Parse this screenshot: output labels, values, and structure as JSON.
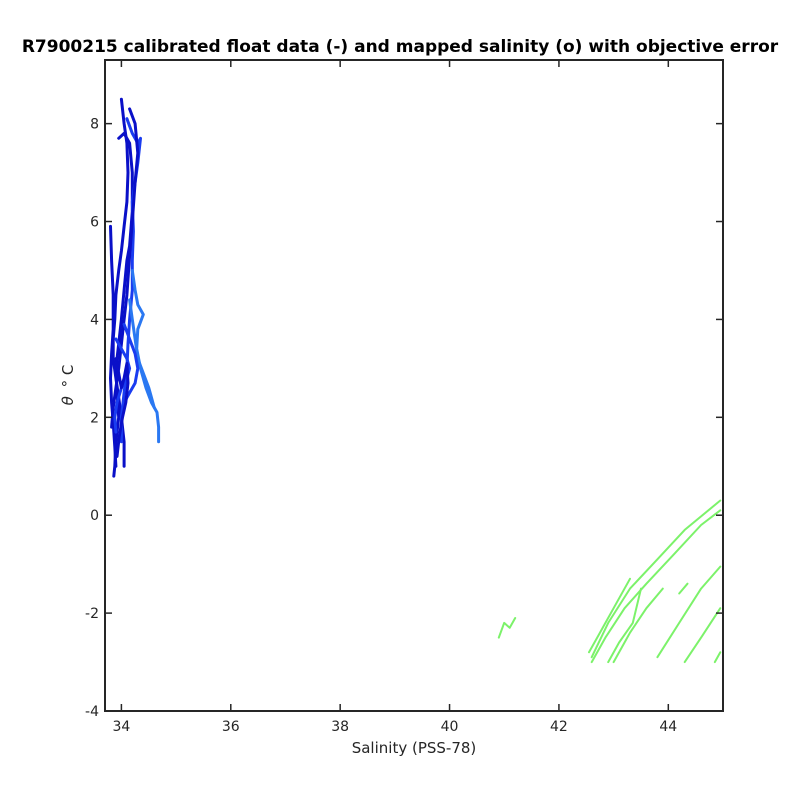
{
  "chart_data": {
    "type": "line",
    "title": "R7900215 calibrated float data (-) and mapped salinity (o) with objective error",
    "xlabel": "Salinity (PSS-78)",
    "ylabel_symbol": "θ",
    "ylabel_unit": "° C",
    "xlim": [
      33.7,
      45.0
    ],
    "ylim": [
      -4,
      9.3
    ],
    "xticks": [
      34,
      36,
      38,
      40,
      42,
      44
    ],
    "yticks": [
      -4,
      -2,
      0,
      2,
      4,
      6,
      8
    ],
    "grid": false,
    "legend": "none",
    "colors": {
      "float_dark": "#0a10c8",
      "float_mid": "#1a3cf0",
      "float_light": "#2a78f2",
      "mapped": "#7cf26a"
    },
    "series": [
      {
        "group": "float_dark",
        "points": [
          [
            34.0,
            8.5
          ],
          [
            34.05,
            8.0
          ],
          [
            34.1,
            7.6
          ],
          [
            34.12,
            7.0
          ],
          [
            34.1,
            6.4
          ],
          [
            34.05,
            5.9
          ],
          [
            34.0,
            5.4
          ],
          [
            33.95,
            5.0
          ],
          [
            33.9,
            4.5
          ],
          [
            33.88,
            4.0
          ],
          [
            33.85,
            3.6
          ],
          [
            33.85,
            3.2
          ],
          [
            33.9,
            2.8
          ],
          [
            33.95,
            2.4
          ],
          [
            34.0,
            2.0
          ],
          [
            34.05,
            1.5
          ],
          [
            34.05,
            1.0
          ]
        ]
      },
      {
        "group": "float_dark",
        "points": [
          [
            33.95,
            7.7
          ],
          [
            34.05,
            7.8
          ],
          [
            34.15,
            7.6
          ],
          [
            34.2,
            7.0
          ],
          [
            34.2,
            6.2
          ],
          [
            34.15,
            5.5
          ],
          [
            34.1,
            5.2
          ],
          [
            34.05,
            4.6
          ],
          [
            34.0,
            4.0
          ],
          [
            33.95,
            3.5
          ],
          [
            33.9,
            3.0
          ],
          [
            33.92,
            2.5
          ],
          [
            33.95,
            2.0
          ],
          [
            33.9,
            1.5
          ],
          [
            33.88,
            1.0
          ],
          [
            33.86,
            0.8
          ]
        ]
      },
      {
        "group": "float_mid",
        "points": [
          [
            34.1,
            8.1
          ],
          [
            34.2,
            7.8
          ],
          [
            34.3,
            7.6
          ],
          [
            34.35,
            7.7
          ],
          [
            34.3,
            7.2
          ],
          [
            34.25,
            6.8
          ],
          [
            34.2,
            6.4
          ],
          [
            34.22,
            5.8
          ],
          [
            34.2,
            5.2
          ],
          [
            34.2,
            4.6
          ],
          [
            34.15,
            4.0
          ],
          [
            34.12,
            3.5
          ],
          [
            34.1,
            3.0
          ],
          [
            34.05,
            2.5
          ],
          [
            34.0,
            2.0
          ],
          [
            34.0,
            1.5
          ]
        ]
      },
      {
        "group": "float_dark",
        "points": [
          [
            34.15,
            8.3
          ],
          [
            34.25,
            8.0
          ],
          [
            34.3,
            7.4
          ],
          [
            34.25,
            6.8
          ],
          [
            34.2,
            6.0
          ],
          [
            34.15,
            5.3
          ],
          [
            34.1,
            4.5
          ],
          [
            34.05,
            4.0
          ],
          [
            34.0,
            3.5
          ],
          [
            33.95,
            3.0
          ],
          [
            33.9,
            2.6
          ],
          [
            33.85,
            2.2
          ],
          [
            33.82,
            1.8
          ]
        ]
      },
      {
        "group": "float_dark",
        "points": [
          [
            33.8,
            5.9
          ],
          [
            33.82,
            5.2
          ],
          [
            33.85,
            4.5
          ],
          [
            33.85,
            3.8
          ],
          [
            33.82,
            3.3
          ],
          [
            33.8,
            2.8
          ],
          [
            33.82,
            2.3
          ],
          [
            33.85,
            1.9
          ],
          [
            33.88,
            1.4
          ],
          [
            33.9,
            1.0
          ]
        ]
      },
      {
        "group": "float_light",
        "points": [
          [
            34.2,
            5.0
          ],
          [
            34.25,
            4.6
          ],
          [
            34.3,
            4.3
          ],
          [
            34.4,
            4.1
          ],
          [
            34.3,
            3.8
          ],
          [
            34.28,
            3.4
          ],
          [
            34.35,
            3.0
          ],
          [
            34.45,
            2.6
          ],
          [
            34.55,
            2.3
          ],
          [
            34.65,
            2.1
          ],
          [
            34.68,
            1.8
          ],
          [
            34.68,
            1.5
          ]
        ]
      },
      {
        "group": "float_light",
        "points": [
          [
            34.15,
            4.4
          ],
          [
            34.2,
            4.0
          ],
          [
            34.25,
            3.6
          ],
          [
            34.3,
            3.2
          ],
          [
            34.4,
            2.9
          ],
          [
            34.5,
            2.6
          ],
          [
            34.55,
            2.4
          ],
          [
            34.6,
            2.2
          ]
        ]
      },
      {
        "group": "float_mid",
        "points": [
          [
            33.9,
            3.6
          ],
          [
            34.0,
            3.4
          ],
          [
            34.1,
            3.2
          ],
          [
            34.15,
            3.0
          ],
          [
            34.1,
            2.8
          ],
          [
            34.0,
            2.6
          ],
          [
            33.92,
            2.3
          ],
          [
            33.88,
            2.0
          ],
          [
            33.9,
            1.7
          ]
        ]
      },
      {
        "group": "float_mid",
        "points": [
          [
            34.05,
            3.9
          ],
          [
            34.15,
            3.6
          ],
          [
            34.25,
            3.3
          ],
          [
            34.3,
            3.0
          ],
          [
            34.25,
            2.7
          ],
          [
            34.15,
            2.5
          ],
          [
            34.05,
            2.3
          ],
          [
            34.0,
            2.0
          ]
        ]
      },
      {
        "group": "float_dark",
        "points": [
          [
            33.9,
            3.2
          ],
          [
            33.95,
            2.9
          ],
          [
            34.0,
            2.6
          ],
          [
            34.05,
            2.8
          ],
          [
            34.1,
            3.1
          ],
          [
            34.12,
            2.7
          ],
          [
            34.08,
            2.3
          ],
          [
            34.02,
            2.0
          ],
          [
            33.96,
            1.6
          ],
          [
            33.92,
            1.2
          ]
        ]
      },
      {
        "group": "mapped",
        "points": [
          [
            42.6,
            -2.9
          ],
          [
            42.9,
            -2.2
          ],
          [
            43.3,
            -1.5
          ],
          [
            43.8,
            -0.9
          ],
          [
            44.3,
            -0.3
          ],
          [
            44.95,
            0.3
          ]
        ]
      },
      {
        "group": "mapped",
        "points": [
          [
            42.6,
            -3.0
          ],
          [
            42.85,
            -2.5
          ],
          [
            43.2,
            -1.9
          ],
          [
            43.6,
            -1.4
          ],
          [
            44.1,
            -0.8
          ],
          [
            44.6,
            -0.2
          ],
          [
            44.95,
            0.1
          ]
        ]
      },
      {
        "group": "mapped",
        "points": [
          [
            42.55,
            -2.8
          ],
          [
            42.8,
            -2.3
          ],
          [
            43.0,
            -1.9
          ],
          [
            43.3,
            -1.3
          ]
        ]
      },
      {
        "group": "mapped",
        "points": [
          [
            42.9,
            -3.0
          ],
          [
            43.1,
            -2.6
          ],
          [
            43.35,
            -2.2
          ],
          [
            43.5,
            -1.5
          ]
        ]
      },
      {
        "group": "mapped",
        "points": [
          [
            43.0,
            -3.0
          ],
          [
            43.3,
            -2.4
          ],
          [
            43.6,
            -1.9
          ],
          [
            43.9,
            -1.5
          ]
        ]
      },
      {
        "group": "mapped",
        "points": [
          [
            43.8,
            -2.9
          ],
          [
            44.2,
            -2.2
          ],
          [
            44.6,
            -1.5
          ],
          [
            44.95,
            -1.05
          ]
        ]
      },
      {
        "group": "mapped",
        "points": [
          [
            44.2,
            -1.6
          ],
          [
            44.35,
            -1.4
          ]
        ]
      },
      {
        "group": "mapped",
        "points": [
          [
            44.3,
            -3.0
          ],
          [
            44.6,
            -2.5
          ],
          [
            44.95,
            -1.9
          ]
        ]
      },
      {
        "group": "mapped",
        "points": [
          [
            44.85,
            -3.0
          ],
          [
            44.95,
            -2.8
          ]
        ]
      },
      {
        "group": "mapped",
        "points": [
          [
            40.9,
            -2.5
          ],
          [
            41.0,
            -2.2
          ],
          [
            41.1,
            -2.3
          ],
          [
            41.2,
            -2.1
          ]
        ]
      }
    ]
  }
}
